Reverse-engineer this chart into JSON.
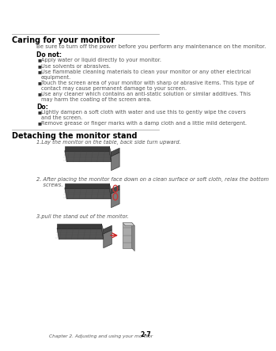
{
  "bg_color": "#ffffff",
  "section1_title": "Caring for your monitor",
  "section1_intro": "Be sure to turn off the power before you perform any maintenance on the monitor.",
  "donot_label": "Do not:",
  "donot_items": [
    "Apply water or liquid directly to your monitor.",
    "Use solvents or abrasives.",
    "Use flammable cleaning materials to clean your monitor or any other electrical\nequipment.",
    "Touch the screen area of your monitor with sharp or abrasive items. This type of\ncontact may cause permanent damage to your screen.",
    "Use any cleaner which contains an anti-static solution or similar additives. This\nmay harm the coating of the screen area."
  ],
  "do_label": "Do:",
  "do_items": [
    "Lightly dampen a soft cloth with water and use this to gently wipe the covers\nand the screen.",
    "Remove grease or finger marks with a damp cloth and a little mild detergent."
  ],
  "section2_title": "Detaching the monitor stand",
  "step1_text": "1.Lay the monitor on the table, back side turn upward.",
  "step2_text": "2. After placing the monitor face down on a clean surface or soft cloth, relax the bottom\n    screws.",
  "step3_text": "3.pull the stand out of the monitor.",
  "footer_text": "Chapter 2. Adjusting and using your monitor",
  "footer_page": "2-7",
  "line_color": "#999999",
  "title_color": "#000000",
  "text_color": "#555555",
  "label_color": "#000000",
  "monitor_dark": "#3a3a3a",
  "monitor_mid": "#555555",
  "monitor_light": "#6a6a6a",
  "monitor_lighter": "#888888",
  "stand_dark": "#4a4a4a",
  "stand_light": "#7a7a7a"
}
